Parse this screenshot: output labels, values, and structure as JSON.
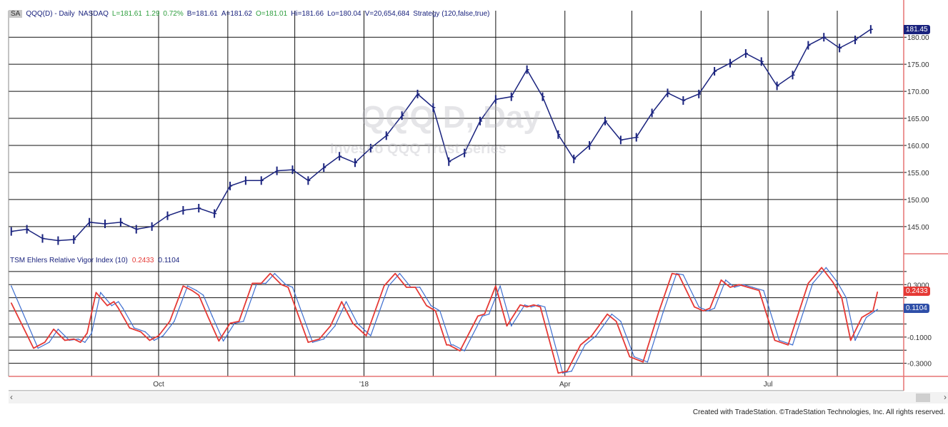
{
  "header": {
    "badge": "SA",
    "symbol": "QQQ(D) - Daily",
    "exchange": "NASDAQ",
    "last": "L=181.61",
    "change": "1.29",
    "change_pct": "0.72%",
    "bid": "B=181.61",
    "ask": "A=181.62",
    "open": "O=181.01",
    "high": "Hi=181.66",
    "low": "Lo=180.04",
    "volume": "V=20,654,684",
    "strategy": "Strategy (120,false,true)"
  },
  "watermark": {
    "line1": "QQQ D, Day",
    "line2": "Invesco QQQ Trust Series"
  },
  "indicator_header": {
    "name": "TSM Ehlers Relative Vigor Index (10)",
    "rvi_value": "0.2433",
    "signal_value": "0.1104"
  },
  "price_badge": "181.45",
  "rvi_badge": "0.2433",
  "signal_badge": "0.1104",
  "footer": "Created with TradeStation. ©TradeStation Technologies, Inc. All rights reserved.",
  "colors": {
    "price": "#1a237e",
    "rvi": "#e53935",
    "signal": "#3f6fd0",
    "grid": "#000000",
    "separator": "#e57373"
  },
  "chart_data": [
    {
      "type": "line",
      "title": "",
      "xlabel": "",
      "ylabel": "",
      "ylim": [
        140.1,
        184.9
      ],
      "yticks": [
        "145.00",
        "150.00",
        "155.00",
        "160.00",
        "165.00",
        "170.00",
        "175.00",
        "180.00"
      ],
      "ytick_values": [
        145,
        150,
        155,
        160,
        165,
        170,
        175,
        180
      ],
      "xticks": [
        {
          "label": "Oct",
          "date": "2017-10-01"
        },
        {
          "label": "'18",
          "date": "2018-01-01"
        },
        {
          "label": "Apr",
          "date": "2018-04-01"
        },
        {
          "label": "Jul",
          "date": "2018-07-01"
        }
      ],
      "grid": true,
      "series": [
        {
          "points": [
            [
              "2017-07-27",
              144.1
            ],
            [
              "2017-08-03",
              144.5
            ],
            [
              "2017-08-10",
              142.8
            ],
            [
              "2017-08-17",
              142.4
            ],
            [
              "2017-08-24",
              142.6
            ],
            [
              "2017-08-31",
              145.8
            ],
            [
              "2017-09-07",
              145.5
            ],
            [
              "2017-09-14",
              145.8
            ],
            [
              "2017-09-21",
              144.5
            ],
            [
              "2017-09-28",
              145.0
            ],
            [
              "2017-10-05",
              147.0
            ],
            [
              "2017-10-12",
              148.0
            ],
            [
              "2017-10-19",
              148.4
            ],
            [
              "2017-10-26",
              147.4
            ],
            [
              "2017-11-02",
              152.5
            ],
            [
              "2017-11-09",
              153.5
            ],
            [
              "2017-11-16",
              153.5
            ],
            [
              "2017-11-23",
              155.3
            ],
            [
              "2017-11-30",
              155.5
            ],
            [
              "2017-12-07",
              153.5
            ],
            [
              "2017-12-14",
              155.9
            ],
            [
              "2017-12-21",
              158.0
            ],
            [
              "2017-12-28",
              156.8
            ],
            [
              "2018-01-04",
              159.5
            ],
            [
              "2018-01-11",
              161.8
            ],
            [
              "2018-01-18",
              165.5
            ],
            [
              "2018-01-25",
              169.5
            ],
            [
              "2018-02-01",
              167.0
            ],
            [
              "2018-02-08",
              157.0
            ],
            [
              "2018-02-15",
              158.6
            ],
            [
              "2018-02-22",
              164.5
            ],
            [
              "2018-03-01",
              168.5
            ],
            [
              "2018-03-08",
              169.0
            ],
            [
              "2018-03-15",
              174.0
            ],
            [
              "2018-03-22",
              169.0
            ],
            [
              "2018-03-29",
              162.0
            ],
            [
              "2018-04-05",
              157.5
            ],
            [
              "2018-04-12",
              160.0
            ],
            [
              "2018-04-19",
              164.5
            ],
            [
              "2018-04-26",
              161.0
            ],
            [
              "2018-05-03",
              161.5
            ],
            [
              "2018-05-10",
              166.0
            ],
            [
              "2018-05-17",
              169.7
            ],
            [
              "2018-05-24",
              168.3
            ],
            [
              "2018-05-31",
              169.5
            ],
            [
              "2018-06-07",
              173.7
            ],
            [
              "2018-06-14",
              175.2
            ],
            [
              "2018-06-21",
              177.0
            ],
            [
              "2018-06-28",
              175.5
            ],
            [
              "2018-07-05",
              171.0
            ],
            [
              "2018-07-12",
              173.0
            ],
            [
              "2018-07-19",
              178.5
            ],
            [
              "2018-07-26",
              180.0
            ],
            [
              "2018-08-02",
              178.0
            ],
            [
              "2018-08-09",
              179.5
            ],
            [
              "2018-08-16",
              181.45
            ]
          ]
        }
      ]
    },
    {
      "type": "line",
      "title": "TSM Ehlers Relative Vigor Index (10)",
      "ylim": [
        -0.4,
        0.53
      ],
      "yticks": [
        "0.3000",
        "-0.1000",
        "-0.3000"
      ],
      "ytick_values": [
        0.3,
        -0.1,
        -0.3
      ],
      "grid_values": [
        0.4,
        0.3,
        0.2,
        0.1,
        0,
        -0.1,
        -0.2,
        -0.3
      ],
      "grid": true,
      "series": [
        {
          "points": [
            [
              "2017-07-27",
              0.16
            ],
            [
              "2017-08-06",
              -0.185
            ],
            [
              "2017-08-11",
              -0.14
            ],
            [
              "2017-08-15",
              -0.04
            ],
            [
              "2017-08-20",
              -0.125
            ],
            [
              "2017-08-24",
              -0.115
            ],
            [
              "2017-08-27",
              -0.14
            ],
            [
              "2017-08-30",
              -0.07
            ],
            [
              "2017-09-03",
              0.24
            ],
            [
              "2017-09-08",
              0.14
            ],
            [
              "2017-09-11",
              0.17
            ],
            [
              "2017-09-13",
              0.12
            ],
            [
              "2017-09-18",
              -0.03
            ],
            [
              "2017-09-23",
              -0.06
            ],
            [
              "2017-09-27",
              -0.125
            ],
            [
              "2017-10-01",
              -0.09
            ],
            [
              "2017-10-06",
              0.02
            ],
            [
              "2017-10-12",
              0.29
            ],
            [
              "2017-10-16",
              0.255
            ],
            [
              "2017-10-19",
              0.22
            ],
            [
              "2017-10-23",
              0.06
            ],
            [
              "2017-10-28",
              -0.13
            ],
            [
              "2017-11-02",
              0.005
            ],
            [
              "2017-11-06",
              0.02
            ],
            [
              "2017-11-12",
              0.31
            ],
            [
              "2017-11-16",
              0.31
            ],
            [
              "2017-11-20",
              0.385
            ],
            [
              "2017-11-25",
              0.3
            ],
            [
              "2017-11-28",
              0.28
            ],
            [
              "2017-12-07",
              -0.14
            ],
            [
              "2017-12-12",
              -0.115
            ],
            [
              "2017-12-17",
              -0.015
            ],
            [
              "2017-12-22",
              0.17
            ],
            [
              "2017-12-27",
              0.005
            ],
            [
              "2018-01-02",
              -0.09
            ],
            [
              "2018-01-10",
              0.29
            ],
            [
              "2018-01-15",
              0.385
            ],
            [
              "2018-01-20",
              0.28
            ],
            [
              "2018-01-24",
              0.28
            ],
            [
              "2018-01-29",
              0.14
            ],
            [
              "2018-02-02",
              0.1
            ],
            [
              "2018-02-07",
              -0.16
            ],
            [
              "2018-02-08",
              -0.16
            ],
            [
              "2018-02-13",
              -0.205
            ],
            [
              "2018-02-21",
              0.06
            ],
            [
              "2018-02-24",
              0.075
            ],
            [
              "2018-03-01",
              0.29
            ],
            [
              "2018-03-06",
              -0.015
            ],
            [
              "2018-03-12",
              0.145
            ],
            [
              "2018-03-15",
              0.13
            ],
            [
              "2018-03-18",
              0.145
            ],
            [
              "2018-03-21",
              0.13
            ],
            [
              "2018-03-29",
              -0.375
            ],
            [
              "2018-04-02",
              -0.36
            ],
            [
              "2018-04-08",
              -0.16
            ],
            [
              "2018-04-13",
              -0.09
            ],
            [
              "2018-04-20",
              0.075
            ],
            [
              "2018-04-24",
              0.02
            ],
            [
              "2018-04-30",
              -0.25
            ],
            [
              "2018-05-06",
              -0.29
            ],
            [
              "2018-05-13",
              0.09
            ],
            [
              "2018-05-19",
              0.385
            ],
            [
              "2018-05-22",
              0.375
            ],
            [
              "2018-05-29",
              0.13
            ],
            [
              "2018-06-02",
              0.1
            ],
            [
              "2018-06-05",
              0.12
            ],
            [
              "2018-06-10",
              0.335
            ],
            [
              "2018-06-14",
              0.28
            ],
            [
              "2018-06-18",
              0.3
            ],
            [
              "2018-06-22",
              0.28
            ],
            [
              "2018-06-27",
              0.255
            ],
            [
              "2018-07-04",
              -0.125
            ],
            [
              "2018-07-10",
              -0.16
            ],
            [
              "2018-07-19",
              0.31
            ],
            [
              "2018-07-25",
              0.43
            ],
            [
              "2018-07-30",
              0.32
            ],
            [
              "2018-08-03",
              0.2
            ],
            [
              "2018-08-07",
              -0.125
            ],
            [
              "2018-08-12",
              0.05
            ],
            [
              "2018-08-17",
              0.1
            ],
            [
              "2018-08-19",
              0.2433
            ]
          ]
        },
        {
          "points": [
            [
              "2017-07-27",
              0.29
            ],
            [
              "2017-08-08",
              -0.185
            ],
            [
              "2017-08-13",
              -0.14
            ],
            [
              "2017-08-17",
              -0.04
            ],
            [
              "2017-08-22",
              -0.125
            ],
            [
              "2017-08-26",
              -0.115
            ],
            [
              "2017-08-29",
              -0.14
            ],
            [
              "2017-09-01",
              -0.07
            ],
            [
              "2017-09-05",
              0.24
            ],
            [
              "2017-09-10",
              0.14
            ],
            [
              "2017-09-13",
              0.17
            ],
            [
              "2017-09-15",
              0.12
            ],
            [
              "2017-09-20",
              -0.03
            ],
            [
              "2017-09-25",
              -0.06
            ],
            [
              "2017-09-29",
              -0.125
            ],
            [
              "2017-10-03",
              -0.09
            ],
            [
              "2017-10-08",
              0.02
            ],
            [
              "2017-10-14",
              0.29
            ],
            [
              "2017-10-18",
              0.255
            ],
            [
              "2017-10-21",
              0.22
            ],
            [
              "2017-10-25",
              0.06
            ],
            [
              "2017-10-30",
              -0.13
            ],
            [
              "2017-11-04",
              0.005
            ],
            [
              "2017-11-08",
              0.02
            ],
            [
              "2017-11-14",
              0.31
            ],
            [
              "2017-11-18",
              0.31
            ],
            [
              "2017-11-22",
              0.385
            ],
            [
              "2017-11-27",
              0.3
            ],
            [
              "2017-11-30",
              0.28
            ],
            [
              "2017-12-09",
              -0.14
            ],
            [
              "2017-12-14",
              -0.115
            ],
            [
              "2017-12-19",
              -0.015
            ],
            [
              "2017-12-24",
              0.17
            ],
            [
              "2017-12-29",
              0.005
            ],
            [
              "2018-01-04",
              -0.09
            ],
            [
              "2018-01-12",
              0.29
            ],
            [
              "2018-01-17",
              0.385
            ],
            [
              "2018-01-22",
              0.28
            ],
            [
              "2018-01-26",
              0.28
            ],
            [
              "2018-01-31",
              0.14
            ],
            [
              "2018-02-04",
              0.1
            ],
            [
              "2018-02-09",
              -0.16
            ],
            [
              "2018-02-10",
              -0.16
            ],
            [
              "2018-02-15",
              -0.205
            ],
            [
              "2018-02-23",
              0.06
            ],
            [
              "2018-02-26",
              0.075
            ],
            [
              "2018-03-03",
              0.29
            ],
            [
              "2018-03-08",
              -0.015
            ],
            [
              "2018-03-14",
              0.145
            ],
            [
              "2018-03-17",
              0.13
            ],
            [
              "2018-03-20",
              0.145
            ],
            [
              "2018-03-23",
              0.13
            ],
            [
              "2018-03-31",
              -0.375
            ],
            [
              "2018-04-04",
              -0.36
            ],
            [
              "2018-04-10",
              -0.16
            ],
            [
              "2018-04-15",
              -0.09
            ],
            [
              "2018-04-22",
              0.075
            ],
            [
              "2018-04-26",
              0.02
            ],
            [
              "2018-05-02",
              -0.25
            ],
            [
              "2018-05-08",
              -0.29
            ],
            [
              "2018-05-15",
              0.09
            ],
            [
              "2018-05-21",
              0.385
            ],
            [
              "2018-05-24",
              0.375
            ],
            [
              "2018-05-31",
              0.13
            ],
            [
              "2018-06-04",
              0.1
            ],
            [
              "2018-06-07",
              0.12
            ],
            [
              "2018-06-12",
              0.335
            ],
            [
              "2018-06-16",
              0.28
            ],
            [
              "2018-06-20",
              0.3
            ],
            [
              "2018-06-24",
              0.28
            ],
            [
              "2018-06-29",
              0.255
            ],
            [
              "2018-07-06",
              -0.125
            ],
            [
              "2018-07-12",
              -0.16
            ],
            [
              "2018-07-21",
              0.31
            ],
            [
              "2018-07-27",
              0.43
            ],
            [
              "2018-08-01",
              0.32
            ],
            [
              "2018-08-05",
              0.2
            ],
            [
              "2018-08-09",
              -0.125
            ],
            [
              "2018-08-14",
              0.05
            ],
            [
              "2018-08-19",
              0.1104
            ]
          ]
        }
      ]
    }
  ]
}
